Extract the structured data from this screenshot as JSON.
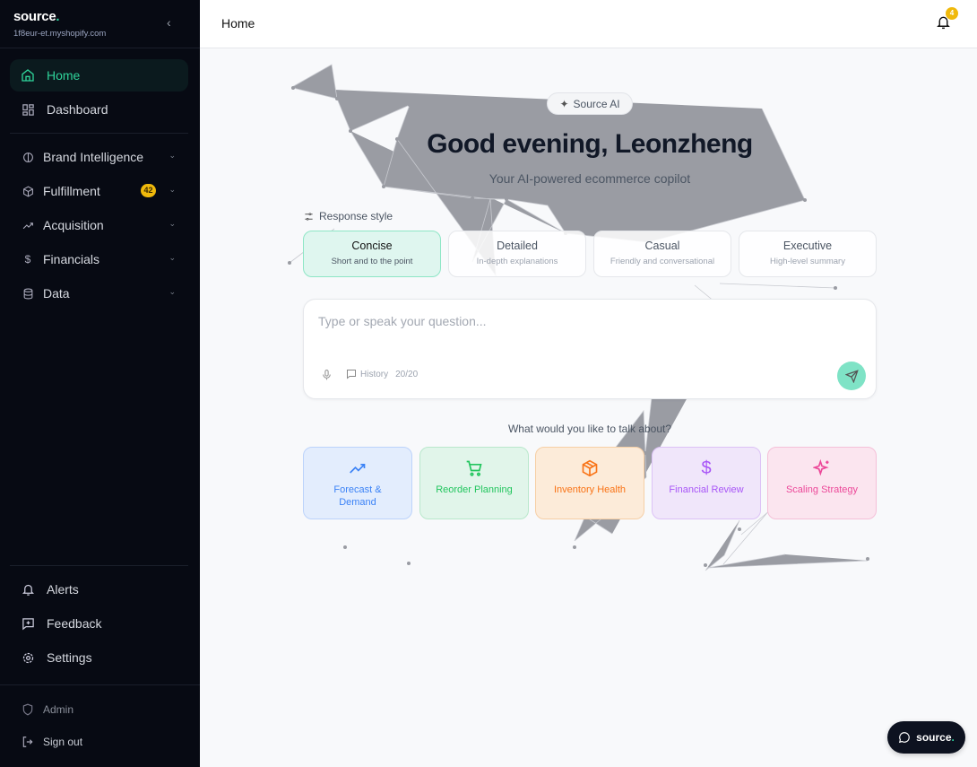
{
  "sidebar": {
    "brand": "source",
    "store": "1f8eur-et.myshopify.com",
    "primary": [
      {
        "label": "Home",
        "icon": "home-icon",
        "active": true
      },
      {
        "label": "Dashboard",
        "icon": "grid-icon"
      }
    ],
    "sections": [
      {
        "label": "Brand Intelligence",
        "icon": "brain-icon"
      },
      {
        "label": "Fulfillment",
        "icon": "box-icon",
        "badge": "42"
      },
      {
        "label": "Acquisition",
        "icon": "trending-up-icon"
      },
      {
        "label": "Financials",
        "icon": "dollar-icon"
      },
      {
        "label": "Data",
        "icon": "database-icon"
      }
    ],
    "bottom": [
      {
        "label": "Alerts",
        "icon": "bell-icon"
      },
      {
        "label": "Feedback",
        "icon": "feedback-icon"
      },
      {
        "label": "Settings",
        "icon": "gear-icon"
      }
    ],
    "admin": "Admin",
    "signout": "Sign out"
  },
  "header": {
    "title": "Home",
    "notifications": "4"
  },
  "main": {
    "pill": "Source AI",
    "greeting": "Good evening, Leonzheng",
    "subtitle": "Your AI-powered ecommerce copilot",
    "response_style_label": "Response style",
    "styles": [
      {
        "title": "Concise",
        "desc": "Short and to the point",
        "selected": true
      },
      {
        "title": "Detailed",
        "desc": "In-depth explanations"
      },
      {
        "title": "Casual",
        "desc": "Friendly and conversational"
      },
      {
        "title": "Executive",
        "desc": "High-level summary"
      }
    ],
    "input_placeholder": "Type or speak your question...",
    "history": "History",
    "history_count": "20/20",
    "talk_prompt": "What would you like to talk about?",
    "topics": [
      {
        "label": "Forecast & Demand",
        "color": "#3b82f6",
        "bg": "#e3edfd",
        "border": "#bcd3fb"
      },
      {
        "label": "Reorder Planning",
        "color": "#22c55e",
        "bg": "#e1f5ea",
        "border": "#b9e8cc"
      },
      {
        "label": "Inventory Health",
        "color": "#f97316",
        "bg": "#fcebd9",
        "border": "#f6cfa6"
      },
      {
        "label": "Financial Review",
        "color": "#a855f7",
        "bg": "#f0e6fa",
        "border": "#dcc2f6"
      },
      {
        "label": "Scaling Strategy",
        "color": "#ec4899",
        "bg": "#fbe5ef",
        "border": "#f5c0d8"
      }
    ]
  },
  "chat_button": {
    "label": "source"
  },
  "colors": {
    "accent": "#2fd39a",
    "sidebar_bg": "#070a13",
    "badge": "#f0b90b"
  }
}
